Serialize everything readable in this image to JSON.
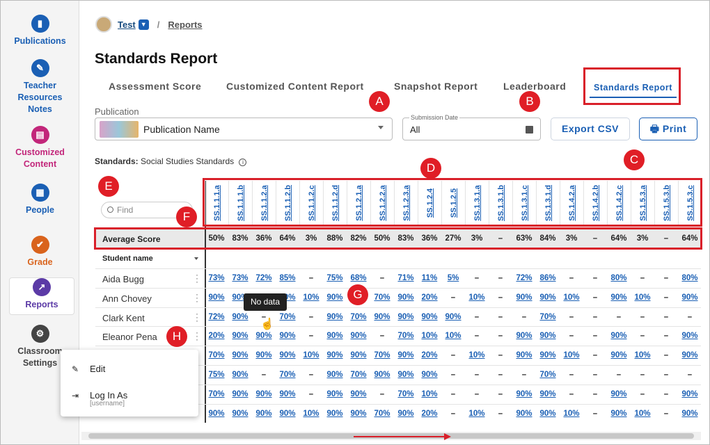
{
  "sidebar": {
    "items": [
      {
        "label": "Publications",
        "color": "#1a5fb4",
        "icon": "book-icon"
      },
      {
        "label": "Teacher\nResources\nNotes",
        "color": "#1a5fb4",
        "icon": "pen-icon"
      },
      {
        "label": "Customized\nContent",
        "color": "#c2267a",
        "icon": "document-icon"
      },
      {
        "label": "People",
        "color": "#1a5fb4",
        "icon": "people-icon"
      },
      {
        "label": "Grade",
        "color": "#d9631c",
        "icon": "grade-icon"
      },
      {
        "label": "Reports",
        "color": "#5b3aa6",
        "icon": "chart-icon"
      },
      {
        "label": "Classroom\nSettings",
        "color": "#444",
        "icon": "gear-icon"
      }
    ]
  },
  "breadcrumb": {
    "classroom": "Test",
    "current": "Reports"
  },
  "page_title": "Standards Report",
  "tabs": [
    "Assessment Score",
    "Customized Content Report",
    "Snapshot Report",
    "Leaderboard",
    "Standards Report"
  ],
  "filters": {
    "publication_label": "Publication",
    "publication_value": "Publication Name",
    "date_label": "Submission Date",
    "date_value": "All"
  },
  "buttons": {
    "export": "Export CSV",
    "print": "Print"
  },
  "standards": {
    "label": "Standards:",
    "value": "Social Studies Standards"
  },
  "search": {
    "placeholder": "Find"
  },
  "columns": [
    "SS.1.1.1.a",
    "SS.1.1.1.b",
    "SS.1.1.2.a",
    "SS.1.1.2.b",
    "SS.1.1.2.c",
    "SS.1.1.2.d",
    "SS.1.2.1.a",
    "SS.1.2.2.a",
    "SS.1.2.3.a",
    "SS.1.2.4",
    "SS.1.2.5",
    "SS.1.3.1.a",
    "SS.1.3.1.b",
    "SS.1.3.1.c",
    "SS.1.3.1.d",
    "SS.1.4.2.a",
    "SS.1.4.2.b",
    "SS.1.4.2.c",
    "SS.1.5.3.a",
    "SS.1.5.3.b",
    "SS.1.5.3.c"
  ],
  "average": {
    "label": "Average Score",
    "values": [
      "50%",
      "83%",
      "36%",
      "64%",
      "3%",
      "88%",
      "82%",
      "50%",
      "83%",
      "36%",
      "27%",
      "3%",
      "–",
      "63%",
      "84%",
      "3%",
      "–",
      "64%",
      "3%",
      "–",
      "64%"
    ]
  },
  "student_header": "Student name",
  "students": [
    {
      "name": "Aida Bugg",
      "scores": [
        "73%",
        "73%",
        "72%",
        "85%",
        "–",
        "75%",
        "68%",
        "–",
        "71%",
        "11%",
        "5%",
        "–",
        "–",
        "72%",
        "86%",
        "–",
        "–",
        "80%",
        "–",
        "–",
        "80%"
      ]
    },
    {
      "name": "Ann Chovey",
      "scores": [
        "90%",
        "90%",
        "90%",
        "10%",
        "10%",
        "90%",
        "–",
        "70%",
        "90%",
        "20%",
        "–",
        "10%",
        "–",
        "90%",
        "90%",
        "10%",
        "–",
        "90%",
        "10%",
        "–",
        "90%"
      ]
    },
    {
      "name": "Clark Kent",
      "scores": [
        "72%",
        "90%",
        "–",
        "70%",
        "–",
        "90%",
        "70%",
        "90%",
        "90%",
        "90%",
        "90%",
        "–",
        "–",
        "–",
        "70%",
        "–",
        "–",
        "–",
        "–",
        "–",
        "–"
      ]
    },
    {
      "name": "Eleanor Pena",
      "scores": [
        "20%",
        "90%",
        "90%",
        "90%",
        "–",
        "90%",
        "90%",
        "–",
        "70%",
        "10%",
        "10%",
        "–",
        "–",
        "90%",
        "90%",
        "–",
        "–",
        "90%",
        "–",
        "–",
        "90%"
      ]
    },
    {
      "name": "",
      "scores": [
        "70%",
        "90%",
        "90%",
        "90%",
        "10%",
        "90%",
        "90%",
        "70%",
        "90%",
        "20%",
        "–",
        "10%",
        "–",
        "90%",
        "90%",
        "10%",
        "–",
        "90%",
        "10%",
        "–",
        "90%"
      ]
    },
    {
      "name": "",
      "scores": [
        "75%",
        "90%",
        "–",
        "70%",
        "–",
        "90%",
        "70%",
        "90%",
        "90%",
        "90%",
        "–",
        "–",
        "–",
        "–",
        "70%",
        "–",
        "–",
        "–",
        "–",
        "–",
        "–"
      ]
    },
    {
      "name": "",
      "scores": [
        "70%",
        "90%",
        "90%",
        "90%",
        "–",
        "90%",
        "90%",
        "–",
        "70%",
        "10%",
        "–",
        "–",
        "–",
        "90%",
        "90%",
        "–",
        "–",
        "90%",
        "–",
        "–",
        "90%"
      ]
    },
    {
      "name": "",
      "scores": [
        "90%",
        "90%",
        "90%",
        "90%",
        "10%",
        "90%",
        "90%",
        "70%",
        "90%",
        "20%",
        "–",
        "10%",
        "–",
        "90%",
        "90%",
        "10%",
        "–",
        "90%",
        "10%",
        "–",
        "90%"
      ]
    }
  ],
  "tooltip": "No data",
  "context_menu": {
    "edit": "Edit",
    "login": "Log In As",
    "login_sub": "[username]"
  },
  "markers": [
    "A",
    "B",
    "C",
    "D",
    "E",
    "F",
    "G",
    "H"
  ]
}
